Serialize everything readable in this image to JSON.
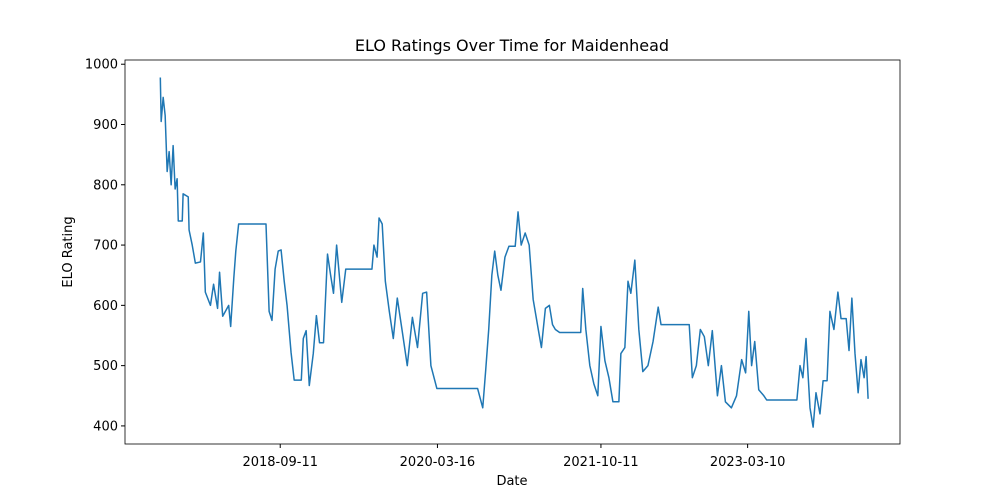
{
  "chart_data": {
    "type": "line",
    "title": "ELO Ratings Over Time for Maidenhead",
    "x_label": "Date",
    "y_label": "ELO Rating",
    "xlim": [
      "2017-03-15",
      "2024-08-26"
    ],
    "xticks": [
      "2018-09-11",
      "2020-03-16",
      "2021-10-11",
      "2023-03-10"
    ],
    "ylim": [
      370,
      1007
    ],
    "yticks": [
      400,
      500,
      600,
      700,
      800,
      900,
      1000
    ],
    "grid": false,
    "series": [
      {
        "name": "Maidenhead",
        "color": "#1f77b4",
        "x": [
          "2017-07-17",
          "2017-07-20",
          "2017-07-27",
          "2017-08-03",
          "2017-08-10",
          "2017-08-17",
          "2017-08-24",
          "2017-08-31",
          "2017-09-07",
          "2017-09-14",
          "2017-09-18",
          "2017-10-02",
          "2017-10-05",
          "2017-10-23",
          "2017-10-26",
          "2017-11-06",
          "2017-11-17",
          "2017-12-05",
          "2017-12-15",
          "2017-12-22",
          "2018-01-09",
          "2018-01-20",
          "2018-02-03",
          "2018-02-10",
          "2018-02-21",
          "2018-03-14",
          "2018-03-21",
          "2018-04-01",
          "2018-04-08",
          "2018-04-18",
          "2018-07-23",
          "2018-08-03",
          "2018-08-13",
          "2018-08-24",
          "2018-09-04",
          "2018-09-14",
          "2018-09-25",
          "2018-10-05",
          "2018-10-19",
          "2018-10-30",
          "2018-11-24",
          "2018-12-01",
          "2018-12-11",
          "2018-12-22",
          "2019-01-05",
          "2019-01-16",
          "2019-01-27",
          "2019-02-10",
          "2019-02-24",
          "2019-03-07",
          "2019-03-17",
          "2019-03-28",
          "2019-04-15",
          "2019-04-29",
          "2019-07-30",
          "2019-08-06",
          "2019-08-17",
          "2019-08-24",
          "2019-09-04",
          "2019-09-15",
          "2019-09-29",
          "2019-10-13",
          "2019-10-27",
          "2019-11-14",
          "2019-12-01",
          "2019-12-19",
          "2020-01-06",
          "2020-01-24",
          "2020-02-07",
          "2020-02-22",
          "2020-03-14",
          "2020-08-04",
          "2020-08-22",
          "2020-09-01",
          "2020-09-12",
          "2020-09-23",
          "2020-10-03",
          "2020-10-14",
          "2020-10-25",
          "2020-11-08",
          "2020-11-22",
          "2020-12-14",
          "2020-12-24",
          "2021-01-04",
          "2021-01-18",
          "2021-02-01",
          "2021-02-15",
          "2021-03-05",
          "2021-03-16",
          "2021-03-30",
          "2021-04-13",
          "2021-04-24",
          "2021-05-04",
          "2021-05-19",
          "2021-08-01",
          "2021-08-08",
          "2021-08-19",
          "2021-09-02",
          "2021-09-16",
          "2021-09-30",
          "2021-10-11",
          "2021-10-25",
          "2021-11-08",
          "2021-11-22",
          "2021-12-13",
          "2021-12-20",
          "2022-01-03",
          "2022-01-14",
          "2022-01-24",
          "2022-02-07",
          "2022-02-21",
          "2022-03-07",
          "2022-03-25",
          "2022-04-12",
          "2022-04-30",
          "2022-05-10",
          "2022-08-17",
          "2022-08-28",
          "2022-09-11",
          "2022-09-25",
          "2022-10-09",
          "2022-10-23",
          "2022-11-06",
          "2022-11-24",
          "2022-12-08",
          "2022-12-22",
          "2023-01-12",
          "2023-01-30",
          "2023-02-17",
          "2023-03-03",
          "2023-03-14",
          "2023-03-24",
          "2023-04-04",
          "2023-04-18",
          "2023-05-06",
          "2023-05-16",
          "2023-08-30",
          "2023-09-10",
          "2023-09-20",
          "2023-10-01",
          "2023-10-15",
          "2023-10-26",
          "2023-11-05",
          "2023-11-19",
          "2023-11-30",
          "2023-12-14",
          "2023-12-24",
          "2024-01-07",
          "2024-01-21",
          "2024-02-01",
          "2024-02-19",
          "2024-02-29",
          "2024-03-10",
          "2024-03-21",
          "2024-04-01",
          "2024-04-11",
          "2024-04-22",
          "2024-04-29",
          "2024-05-06"
        ],
        "values": [
          978,
          905,
          945,
          915,
          822,
          855,
          800,
          865,
          793,
          810,
          740,
          740,
          785,
          780,
          725,
          700,
          670,
          672,
          720,
          622,
          600,
          635,
          595,
          655,
          582,
          600,
          565,
          645,
          690,
          735,
          735,
          590,
          575,
          660,
          690,
          692,
          640,
          600,
          522,
          476,
          476,
          545,
          558,
          467,
          520,
          583,
          538,
          538,
          685,
          650,
          620,
          700,
          605,
          660,
          660,
          700,
          680,
          745,
          735,
          640,
          590,
          545,
          612,
          555,
          500,
          580,
          530,
          620,
          622,
          500,
          462,
          462,
          430,
          490,
          560,
          650,
          690,
          650,
          625,
          680,
          698,
          698,
          755,
          700,
          720,
          700,
          610,
          560,
          530,
          595,
          600,
          568,
          560,
          555,
          555,
          628,
          560,
          500,
          470,
          450,
          565,
          508,
          480,
          440,
          440,
          520,
          530,
          640,
          620,
          675,
          560,
          490,
          500,
          540,
          597,
          568,
          568,
          480,
          500,
          560,
          548,
          500,
          558,
          450,
          500,
          440,
          430,
          450,
          510,
          488,
          590,
          500,
          540,
          460,
          450,
          443,
          443,
          500,
          480,
          545,
          430,
          398,
          455,
          420,
          475,
          475,
          590,
          560,
          622,
          578,
          578,
          525,
          612,
          520,
          455,
          510,
          480,
          515,
          445
        ]
      }
    ]
  }
}
